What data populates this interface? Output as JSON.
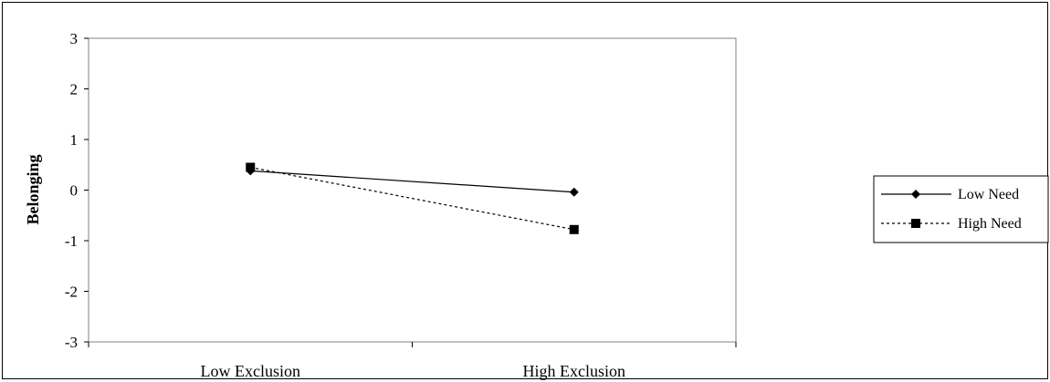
{
  "chart_data": {
    "type": "line",
    "ylabel": "Belonging",
    "ylim": [
      -3,
      3
    ],
    "yticks": [
      "3",
      "2",
      "1",
      "0",
      "-1",
      "-2",
      "-3"
    ],
    "categories": [
      "Low Exclusion",
      "High Exclusion"
    ],
    "series": [
      {
        "name": "Low Need",
        "values": [
          0.38,
          -0.04
        ],
        "marker": "diamond",
        "line": "solid"
      },
      {
        "name": "High Need",
        "values": [
          0.45,
          -0.78
        ],
        "marker": "square",
        "line": "dotted"
      }
    ],
    "grid": false,
    "legend": "right"
  }
}
